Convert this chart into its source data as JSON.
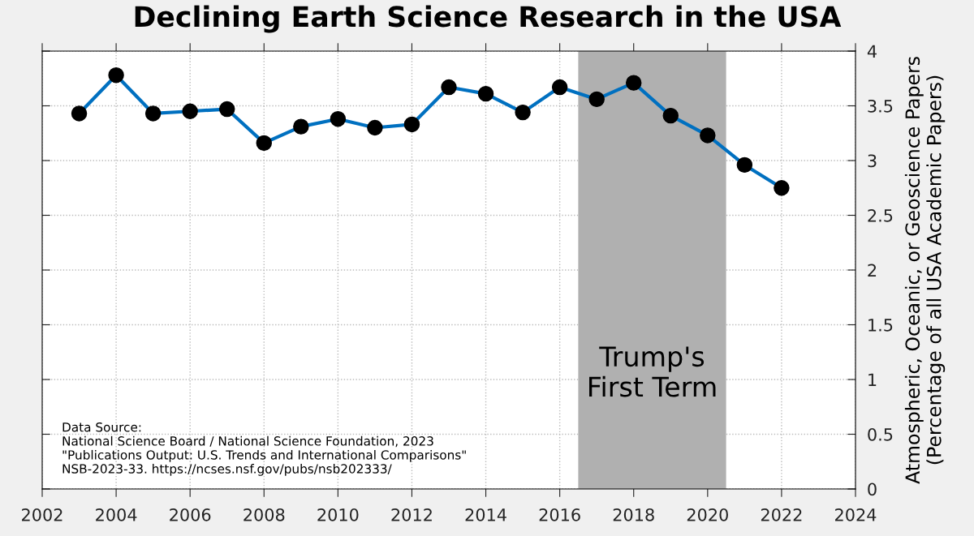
{
  "chart_data": {
    "type": "line",
    "title": "Declining Earth Science Research in the USA",
    "ylabel": "Atmospheric, Oceanic, or Geoscience Papers\n(Percentage of all USA Academic Papers)",
    "x": [
      2003,
      2004,
      2005,
      2006,
      2007,
      2008,
      2009,
      2010,
      2011,
      2012,
      2013,
      2014,
      2015,
      2016,
      2017,
      2018,
      2019,
      2020,
      2021,
      2022
    ],
    "series": [
      {
        "color": "#0070c0",
        "values": [
          3.43,
          3.78,
          3.43,
          3.45,
          3.47,
          3.16,
          3.31,
          3.38,
          3.3,
          3.33,
          3.67,
          3.61,
          3.44,
          3.67,
          3.56,
          3.71,
          3.41,
          3.23,
          2.96,
          2.75
        ]
      }
    ],
    "marker": "circle",
    "line_style": "solid",
    "xlim": [
      2002,
      2024
    ],
    "xticks": [
      2002,
      2004,
      2006,
      2008,
      2010,
      2012,
      2014,
      2016,
      2018,
      2020,
      2022,
      2024
    ],
    "ylim": [
      0,
      4
    ],
    "yticks": [
      0,
      0.5,
      1,
      1.5,
      2,
      2.5,
      3,
      3.5,
      4
    ],
    "bands": [
      {
        "axis": "x",
        "from": 2016.5,
        "to": 2020.5,
        "label": "Trump's\nFirst Term",
        "color": "#b0b0b0"
      }
    ],
    "annotations": [
      "Data Source:\nNational Science Board / National Science Foundation, 2023\n\"Publications Output: U.S. Trends and International Comparisons\"\nNSB-2023-33. https://ncses.nsf.gov/pubs/nsb202333/"
    ],
    "grid": true
  }
}
